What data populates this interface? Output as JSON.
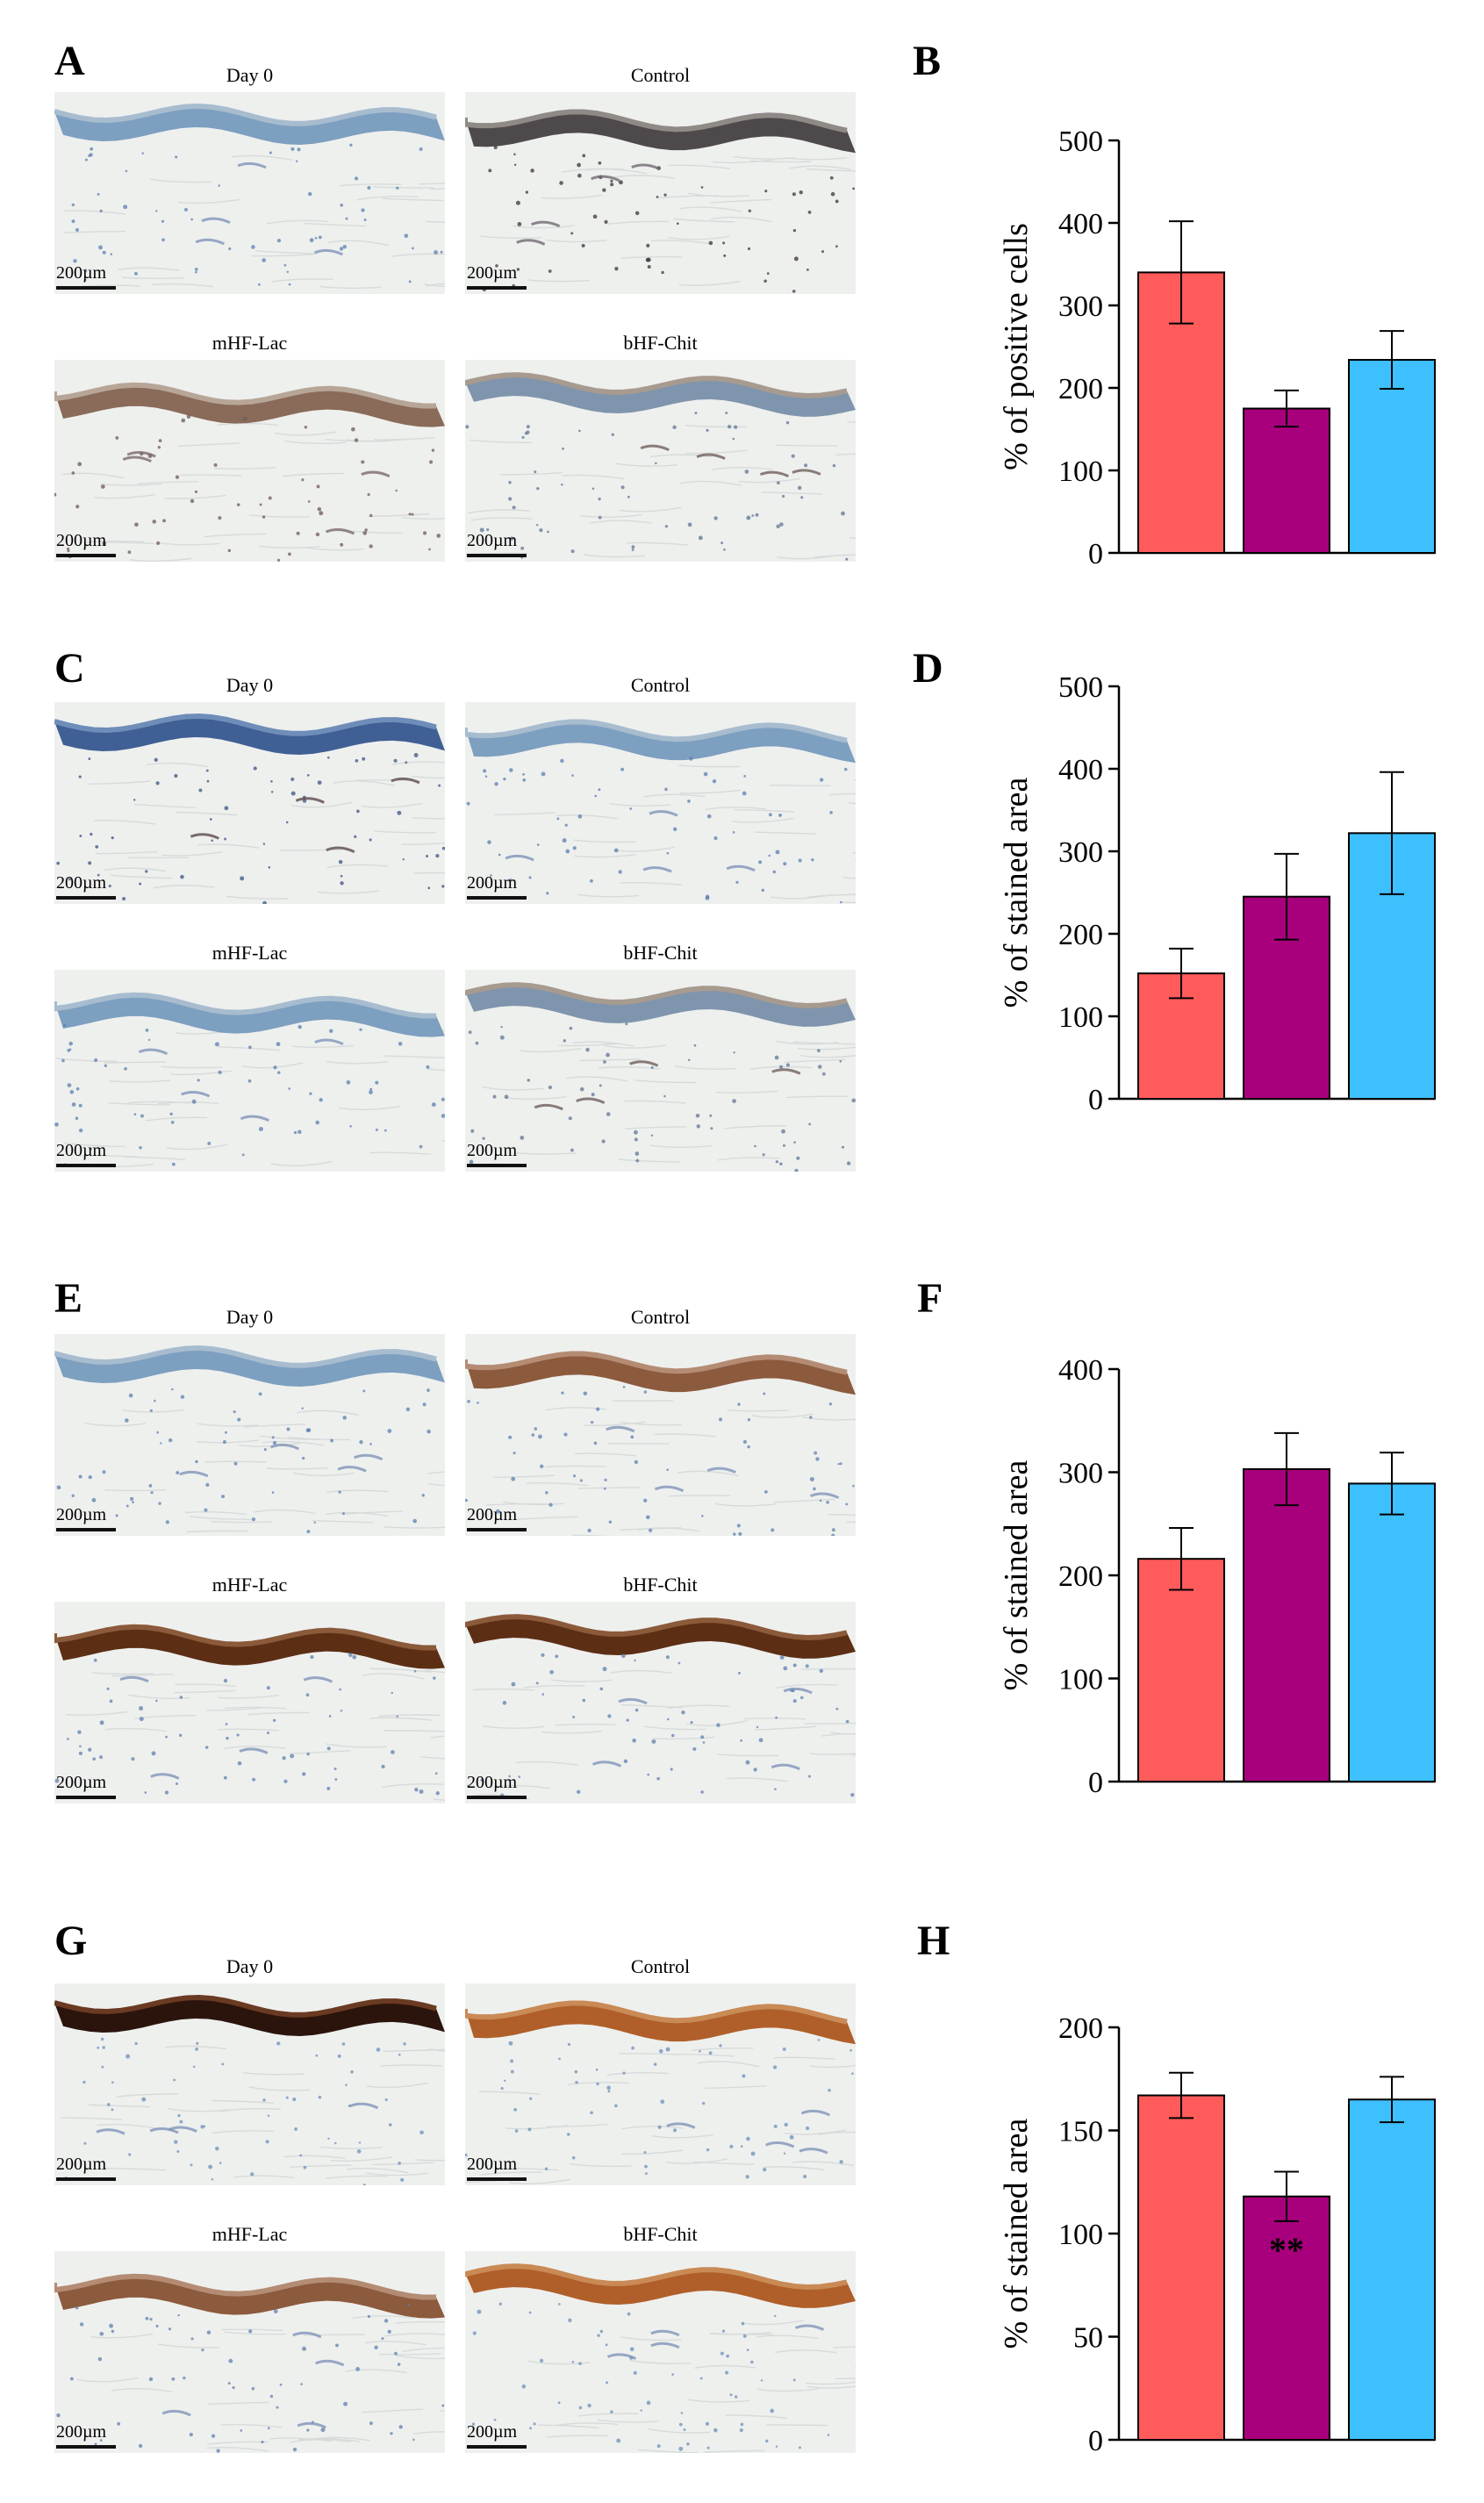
{
  "panel_letters": [
    "A",
    "B",
    "C",
    "D",
    "E",
    "F",
    "G",
    "H"
  ],
  "micrograph_groups": [
    {
      "letter": "A",
      "images": [
        {
          "label": "Day 0",
          "scale": "200µm",
          "stain": "light-blue"
        },
        {
          "label": "Control",
          "scale": "200µm",
          "stain": "dark-dots"
        },
        {
          "label": "mHF-Lac",
          "scale": "200µm",
          "stain": "light-brown"
        },
        {
          "label": "bHF-Chit",
          "scale": "200µm",
          "stain": "light-blue-brown"
        }
      ]
    },
    {
      "letter": "C",
      "images": [
        {
          "label": "Day 0",
          "scale": "200µm",
          "stain": "dark-blue"
        },
        {
          "label": "Control",
          "scale": "200µm",
          "stain": "light-blue"
        },
        {
          "label": "mHF-Lac",
          "scale": "200µm",
          "stain": "light-blue"
        },
        {
          "label": "bHF-Chit",
          "scale": "200µm",
          "stain": "light-blue-brown"
        }
      ]
    },
    {
      "letter": "E",
      "images": [
        {
          "label": "Day 0",
          "scale": "200µm",
          "stain": "light-blue"
        },
        {
          "label": "Control",
          "scale": "200µm",
          "stain": "medium-brown"
        },
        {
          "label": "mHF-Lac",
          "scale": "200µm",
          "stain": "dark-brown"
        },
        {
          "label": "bHF-Chit",
          "scale": "200µm",
          "stain": "dark-brown"
        }
      ]
    },
    {
      "letter": "G",
      "images": [
        {
          "label": "Day 0",
          "scale": "200µm",
          "stain": "very-dark-brown"
        },
        {
          "label": "Control",
          "scale": "200µm",
          "stain": "orange-brown"
        },
        {
          "label": "mHF-Lac",
          "scale": "200µm",
          "stain": "medium-brown"
        },
        {
          "label": "bHF-Chit",
          "scale": "200µm",
          "stain": "orange-brown"
        }
      ]
    }
  ],
  "colors": {
    "bar_1": "#ff5b5b",
    "bar_2": "#a8007c",
    "bar_3": "#3ec0ff"
  },
  "chart_data": [
    {
      "letter": "B",
      "type": "bar",
      "ylabel": "% of positive cells",
      "ylim": [
        0,
        500
      ],
      "yticks": [
        0,
        100,
        200,
        300,
        400,
        500
      ],
      "values": [
        340,
        175,
        234
      ],
      "errors": [
        62,
        22,
        35
      ],
      "annotations": [
        "",
        "",
        ""
      ]
    },
    {
      "letter": "D",
      "type": "bar",
      "ylabel": "% of stained area",
      "ylim": [
        0,
        500
      ],
      "yticks": [
        0,
        100,
        200,
        300,
        400,
        500
      ],
      "values": [
        152,
        245,
        322
      ],
      "errors": [
        30,
        52,
        74
      ],
      "annotations": [
        "",
        "",
        ""
      ]
    },
    {
      "letter": "F",
      "type": "bar",
      "ylabel": "% of stained area",
      "ylim": [
        0,
        400
      ],
      "yticks": [
        0,
        100,
        200,
        300,
        400
      ],
      "values": [
        216,
        303,
        289
      ],
      "errors": [
        30,
        35,
        30
      ],
      "annotations": [
        "",
        "",
        ""
      ]
    },
    {
      "letter": "H",
      "type": "bar",
      "ylabel": "% of stained area",
      "ylim": [
        0,
        200
      ],
      "yticks": [
        0,
        50,
        100,
        150,
        200
      ],
      "values": [
        167,
        118,
        165
      ],
      "errors": [
        11,
        12,
        11
      ],
      "annotations": [
        "",
        "**",
        ""
      ]
    }
  ]
}
